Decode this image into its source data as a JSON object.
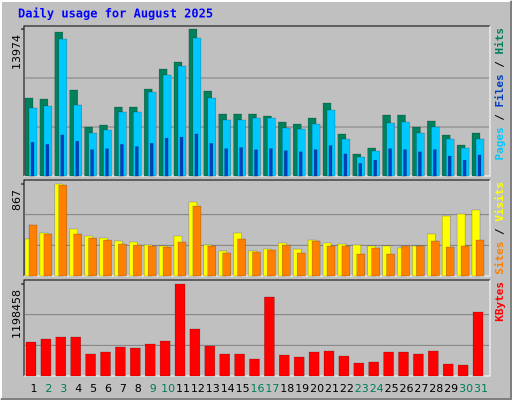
{
  "chart_data": {
    "type": "bar",
    "title": "Daily usage for August 2025",
    "categories": [
      "1",
      "2",
      "3",
      "4",
      "5",
      "6",
      "7",
      "8",
      "9",
      "10",
      "11",
      "12",
      "13",
      "14",
      "15",
      "16",
      "17",
      "18",
      "19",
      "20",
      "21",
      "22",
      "23",
      "24",
      "25",
      "26",
      "27",
      "28",
      "29",
      "30",
      "31"
    ],
    "category_colors": [
      "#000000",
      "#00805c",
      "#00805c",
      "#000000",
      "#000000",
      "#000000",
      "#000000",
      "#000000",
      "#00805c",
      "#00805c",
      "#000000",
      "#000000",
      "#000000",
      "#000000",
      "#000000",
      "#00805c",
      "#00805c",
      "#000000",
      "#000000",
      "#000000",
      "#000000",
      "#000000",
      "#00805c",
      "#00805c",
      "#000000",
      "#000000",
      "#000000",
      "#000000",
      "#000000",
      "#00805c",
      "#00805c"
    ],
    "separator": "/",
    "panels": [
      {
        "ylim": [
          0,
          13974
        ],
        "yticks": [
          13974
        ],
        "series": [
          {
            "name": "Pages",
            "color": "#00c8ff",
            "values": [
              6464,
              6654,
              13023,
              6749,
              4088,
              4373,
              6084,
              6084,
              7985,
              9601,
              10457,
              13118,
              7415,
              5323,
              5323,
              5513,
              5513,
              4563,
              4468,
              4943,
              6274,
              3517,
              1806,
              2376,
              5038,
              5133,
              4088,
              4658,
              3517,
              2662,
              3517
            ]
          },
          {
            "name": "Files",
            "color": "#0040c0",
            "values": [
              3200,
              3000,
              3900,
              3300,
              2500,
              2600,
              3000,
              2800,
              3100,
              3600,
              3700,
              4000,
              3100,
              2600,
              2700,
              2500,
              2600,
              2400,
              2300,
              2500,
              2900,
              2100,
              1200,
              1500,
              2600,
              2500,
              2300,
              2500,
              1900,
              1500,
              2000
            ]
          },
          {
            "name": "Hits",
            "color": "#00805c",
            "values": [
              7415,
              7320,
              13689,
              8175,
              4658,
              4848,
              6559,
              6559,
              8270,
              10171,
              10837,
              13974,
              8080,
              5894,
              5894,
              5894,
              5704,
              5133,
              4943,
              5513,
              6939,
              3993,
              2091,
              2662,
              5799,
              5799,
              4658,
              5228,
              3897,
              2947,
              4088
            ]
          }
        ]
      },
      {
        "ylim": [
          0,
          867
        ],
        "yticks": [
          867
        ],
        "series": [
          {
            "name": "Sites",
            "color": "#ff8000",
            "values": [
              481,
              396,
              857,
              396,
              358,
              339,
              301,
              292,
              283,
              273,
              320,
              659,
              283,
              217,
              349,
              226,
              245,
              292,
              217,
              330,
              283,
              283,
              207,
              264,
              207,
              283,
              283,
              330,
              273,
              283,
              339
            ]
          },
          {
            "name": "Visits",
            "color": "#ffff00",
            "values": [
              349,
              405,
              867,
              443,
              377,
              358,
              330,
              320,
              292,
              283,
              377,
              697,
              292,
              236,
              405,
              236,
              254,
              311,
              254,
              339,
              311,
              301,
              292,
              283,
              283,
              264,
              283,
              396,
              565,
              584,
              622
            ]
          }
        ]
      },
      {
        "ylim": [
          0,
          1198458
        ],
        "yticks": [
          1198458
        ],
        "series": [
          {
            "name": "KBytes",
            "color": "#ff0000",
            "values": [
              442918,
              481999,
              508053,
              508053,
              286594,
              312648,
              377783,
              364756,
              416864,
              455945,
              1198458,
              612269,
              390810,
              286594,
              286594,
              221459,
              1029133,
              273567,
              247513,
              312648,
              325675,
              260540,
              169351,
              182378,
              312648,
              312648,
              286594,
              325675,
              156324,
              143297,
              833728
            ]
          }
        ]
      }
    ]
  }
}
